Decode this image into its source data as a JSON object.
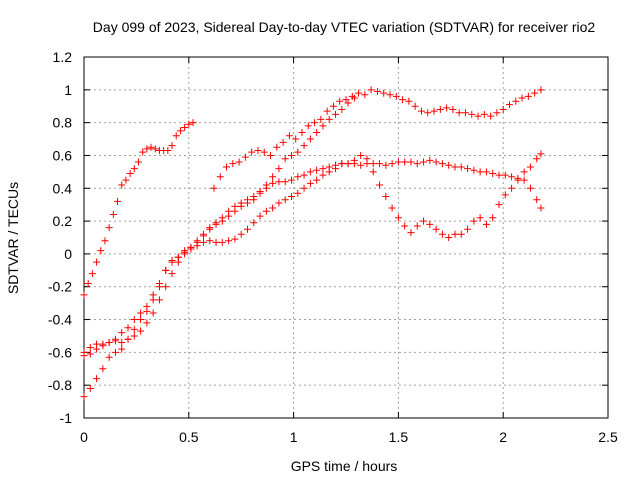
{
  "chart_data": {
    "type": "scatter",
    "title": "Day 099 of 2023, Sidereal Day-to-day VTEC variation (SDTVAR) for receiver rio2",
    "xlabel": "GPS time / hours",
    "ylabel": "SDTVAR / TECUs",
    "xlim": [
      0,
      2.5
    ],
    "ylim": [
      -1,
      1.2
    ],
    "x_ticks": [
      0,
      0.5,
      1,
      1.5,
      2,
      2.5
    ],
    "x_tick_labels": [
      "0",
      "0.5",
      "1",
      "1.5",
      "2",
      "2.5"
    ],
    "y_ticks": [
      -1,
      -0.8,
      -0.6,
      -0.4,
      -0.2,
      0,
      0.2,
      0.4,
      0.6,
      0.8,
      1,
      1.2
    ],
    "y_tick_labels": [
      "-1",
      "-0.8",
      "-0.6",
      "-0.4",
      "-0.2",
      "0",
      "0.2",
      "0.4",
      "0.6",
      "0.8",
      "1",
      "1.2"
    ],
    "grid": true,
    "marker": "+",
    "marker_color": "#ff0000",
    "series": [
      {
        "points": [
          [
            0.0,
            -0.25
          ],
          [
            0.02,
            -0.18
          ],
          [
            0.04,
            -0.12
          ],
          [
            0.06,
            -0.05
          ],
          [
            0.08,
            0.02
          ],
          [
            0.1,
            0.08
          ],
          [
            0.12,
            0.16
          ],
          [
            0.14,
            0.24
          ],
          [
            0.16,
            0.32
          ],
          [
            0.18,
            0.42
          ],
          [
            0.2,
            0.45
          ],
          [
            0.22,
            0.49
          ],
          [
            0.24,
            0.52
          ],
          [
            0.26,
            0.56
          ],
          [
            0.28,
            0.62
          ],
          [
            0.3,
            0.64
          ],
          [
            0.32,
            0.65
          ],
          [
            0.34,
            0.64
          ],
          [
            0.36,
            0.63
          ],
          [
            0.38,
            0.63
          ],
          [
            0.4,
            0.63
          ],
          [
            0.42,
            0.66
          ],
          [
            0.44,
            0.72
          ],
          [
            0.46,
            0.75
          ],
          [
            0.48,
            0.77
          ],
          [
            0.5,
            0.79
          ],
          [
            0.52,
            0.8
          ]
        ]
      },
      {
        "points": [
          [
            0.0,
            -0.62
          ],
          [
            0.03,
            -0.61
          ],
          [
            0.06,
            -0.58
          ],
          [
            0.09,
            -0.55
          ],
          [
            0.12,
            -0.54
          ],
          [
            0.15,
            -0.52
          ],
          [
            0.18,
            -0.48
          ],
          [
            0.21,
            -0.45
          ],
          [
            0.24,
            -0.4
          ],
          [
            0.27,
            -0.36
          ],
          [
            0.3,
            -0.32
          ],
          [
            0.33,
            -0.25
          ],
          [
            0.36,
            -0.18
          ],
          [
            0.39,
            -0.1
          ],
          [
            0.42,
            -0.04
          ],
          [
            0.45,
            -0.02
          ],
          [
            0.48,
            0.02
          ],
          [
            0.51,
            0.04
          ],
          [
            0.54,
            0.07
          ],
          [
            0.57,
            0.11
          ],
          [
            0.6,
            0.15
          ],
          [
            0.63,
            0.19
          ],
          [
            0.66,
            0.22
          ],
          [
            0.69,
            0.26
          ],
          [
            0.72,
            0.29
          ],
          [
            0.75,
            0.31
          ],
          [
            0.78,
            0.33
          ],
          [
            0.81,
            0.35
          ],
          [
            0.84,
            0.38
          ],
          [
            0.87,
            0.4
          ],
          [
            0.9,
            0.43
          ],
          [
            0.93,
            0.44
          ],
          [
            0.96,
            0.44
          ],
          [
            0.99,
            0.45
          ],
          [
            1.02,
            0.47
          ],
          [
            1.05,
            0.48
          ],
          [
            1.08,
            0.5
          ],
          [
            1.11,
            0.51
          ],
          [
            1.14,
            0.52
          ],
          [
            1.17,
            0.53
          ],
          [
            1.2,
            0.54
          ],
          [
            1.23,
            0.55
          ],
          [
            1.26,
            0.55
          ],
          [
            1.29,
            0.55
          ],
          [
            1.32,
            0.54
          ],
          [
            1.35,
            0.55
          ],
          [
            1.38,
            0.55
          ],
          [
            1.41,
            0.55
          ],
          [
            1.44,
            0.54
          ],
          [
            1.47,
            0.55
          ],
          [
            1.5,
            0.56
          ],
          [
            1.53,
            0.56
          ],
          [
            1.56,
            0.56
          ],
          [
            1.59,
            0.55
          ],
          [
            1.62,
            0.56
          ],
          [
            1.65,
            0.57
          ],
          [
            1.68,
            0.56
          ],
          [
            1.71,
            0.55
          ],
          [
            1.74,
            0.54
          ],
          [
            1.77,
            0.53
          ],
          [
            1.8,
            0.53
          ],
          [
            1.83,
            0.52
          ],
          [
            1.86,
            0.51
          ],
          [
            1.89,
            0.5
          ],
          [
            1.92,
            0.5
          ],
          [
            1.95,
            0.49
          ],
          [
            1.98,
            0.48
          ],
          [
            2.01,
            0.48
          ],
          [
            2.04,
            0.47
          ],
          [
            2.07,
            0.46
          ],
          [
            2.1,
            0.45
          ],
          [
            2.13,
            0.4
          ],
          [
            2.16,
            0.33
          ],
          [
            2.18,
            0.28
          ]
        ]
      },
      {
        "points": [
          [
            0.0,
            -0.87
          ],
          [
            0.03,
            -0.82
          ],
          [
            0.06,
            -0.76
          ],
          [
            0.09,
            -0.7
          ],
          [
            0.12,
            -0.63
          ],
          [
            0.15,
            -0.6
          ],
          [
            0.18,
            -0.58
          ],
          [
            0.21,
            -0.52
          ],
          [
            0.24,
            -0.46
          ],
          [
            0.27,
            -0.4
          ],
          [
            0.3,
            -0.35
          ],
          [
            0.33,
            -0.28
          ],
          [
            0.36,
            -0.2
          ],
          [
            0.39,
            -0.1
          ],
          [
            0.42,
            -0.05
          ],
          [
            0.45,
            -0.02
          ],
          [
            0.48,
            0.01
          ],
          [
            0.51,
            0.03
          ],
          [
            0.54,
            0.05
          ],
          [
            0.57,
            0.07
          ],
          [
            0.6,
            0.08
          ],
          [
            0.63,
            0.07
          ],
          [
            0.66,
            0.07
          ],
          [
            0.69,
            0.08
          ],
          [
            0.72,
            0.09
          ],
          [
            0.75,
            0.12
          ],
          [
            0.78,
            0.15
          ],
          [
            0.81,
            0.19
          ],
          [
            0.84,
            0.23
          ],
          [
            0.87,
            0.26
          ],
          [
            0.9,
            0.28
          ],
          [
            0.93,
            0.31
          ],
          [
            0.96,
            0.33
          ],
          [
            0.99,
            0.35
          ],
          [
            1.02,
            0.37
          ],
          [
            1.05,
            0.4
          ],
          [
            1.08,
            0.43
          ],
          [
            1.11,
            0.45
          ],
          [
            1.14,
            0.48
          ],
          [
            1.17,
            0.5
          ],
          [
            1.2,
            0.52
          ],
          [
            1.23,
            0.55
          ],
          [
            1.26,
            0.55
          ],
          [
            1.29,
            0.57
          ],
          [
            1.32,
            0.6
          ],
          [
            1.35,
            0.58
          ],
          [
            1.38,
            0.5
          ],
          [
            1.41,
            0.42
          ],
          [
            1.44,
            0.35
          ],
          [
            1.47,
            0.28
          ],
          [
            1.5,
            0.22
          ],
          [
            1.53,
            0.17
          ],
          [
            1.56,
            0.13
          ],
          [
            1.59,
            0.17
          ],
          [
            1.62,
            0.2
          ],
          [
            1.65,
            0.18
          ],
          [
            1.68,
            0.15
          ],
          [
            1.71,
            0.12
          ],
          [
            1.74,
            0.1
          ],
          [
            1.77,
            0.12
          ],
          [
            1.8,
            0.12
          ],
          [
            1.83,
            0.15
          ],
          [
            1.86,
            0.2
          ],
          [
            1.89,
            0.22
          ],
          [
            1.92,
            0.18
          ],
          [
            1.95,
            0.22
          ],
          [
            1.98,
            0.3
          ],
          [
            2.01,
            0.36
          ],
          [
            2.04,
            0.4
          ],
          [
            2.07,
            0.45
          ],
          [
            2.1,
            0.5
          ],
          [
            2.13,
            0.53
          ],
          [
            2.16,
            0.58
          ],
          [
            2.18,
            0.61
          ]
        ]
      },
      {
        "points": [
          [
            0.62,
            0.4
          ],
          [
            0.65,
            0.47
          ],
          [
            0.68,
            0.53
          ],
          [
            0.71,
            0.55
          ],
          [
            0.74,
            0.56
          ],
          [
            0.77,
            0.59
          ],
          [
            0.8,
            0.62
          ],
          [
            0.83,
            0.63
          ],
          [
            0.86,
            0.62
          ],
          [
            0.89,
            0.6
          ],
          [
            0.92,
            0.65
          ],
          [
            0.95,
            0.68
          ],
          [
            0.98,
            0.72
          ],
          [
            1.01,
            0.7
          ],
          [
            1.04,
            0.74
          ],
          [
            1.07,
            0.78
          ],
          [
            1.1,
            0.8
          ],
          [
            1.13,
            0.82
          ],
          [
            1.16,
            0.87
          ],
          [
            1.19,
            0.9
          ],
          [
            1.22,
            0.93
          ],
          [
            1.25,
            0.94
          ],
          [
            1.28,
            0.96
          ],
          [
            1.31,
            0.98
          ],
          [
            1.34,
            0.97
          ],
          [
            1.37,
            1.0
          ],
          [
            1.4,
            0.99
          ],
          [
            1.43,
            0.98
          ],
          [
            1.46,
            0.97
          ],
          [
            1.49,
            0.96
          ],
          [
            1.52,
            0.94
          ],
          [
            1.55,
            0.93
          ],
          [
            1.58,
            0.9
          ],
          [
            1.61,
            0.87
          ],
          [
            1.64,
            0.86
          ],
          [
            1.67,
            0.87
          ],
          [
            1.7,
            0.88
          ],
          [
            1.73,
            0.89
          ],
          [
            1.76,
            0.88
          ],
          [
            1.79,
            0.86
          ],
          [
            1.82,
            0.86
          ],
          [
            1.85,
            0.85
          ],
          [
            1.88,
            0.84
          ],
          [
            1.91,
            0.85
          ],
          [
            1.94,
            0.84
          ],
          [
            1.97,
            0.86
          ],
          [
            2.0,
            0.88
          ],
          [
            2.03,
            0.91
          ],
          [
            2.06,
            0.93
          ],
          [
            2.09,
            0.95
          ],
          [
            2.12,
            0.96
          ],
          [
            2.15,
            0.98
          ],
          [
            2.18,
            1.0
          ]
        ]
      },
      {
        "points": [
          [
            0.0,
            -0.6
          ],
          [
            0.03,
            -0.57
          ],
          [
            0.06,
            -0.55
          ],
          [
            0.09,
            -0.56
          ],
          [
            0.12,
            -0.54
          ],
          [
            0.15,
            -0.53
          ],
          [
            0.18,
            -0.54
          ],
          [
            0.21,
            -0.52
          ],
          [
            0.24,
            -0.5
          ],
          [
            0.27,
            -0.47
          ],
          [
            0.3,
            -0.42
          ],
          [
            0.33,
            -0.36
          ],
          [
            0.36,
            -0.28
          ],
          [
            0.39,
            -0.2
          ],
          [
            0.42,
            -0.12
          ],
          [
            0.45,
            -0.05
          ],
          [
            0.48,
            0.0
          ],
          [
            0.51,
            0.04
          ],
          [
            0.54,
            0.08
          ],
          [
            0.57,
            0.12
          ],
          [
            0.6,
            0.16
          ],
          [
            0.63,
            0.18
          ],
          [
            0.66,
            0.2
          ],
          [
            0.69,
            0.23
          ],
          [
            0.72,
            0.26
          ],
          [
            0.75,
            0.29
          ],
          [
            0.78,
            0.31
          ],
          [
            0.81,
            0.33
          ],
          [
            0.84,
            0.37
          ],
          [
            0.87,
            0.42
          ],
          [
            0.9,
            0.47
          ],
          [
            0.93,
            0.52
          ],
          [
            0.96,
            0.58
          ],
          [
            0.99,
            0.6
          ],
          [
            1.02,
            0.62
          ],
          [
            1.05,
            0.66
          ],
          [
            1.08,
            0.7
          ],
          [
            1.11,
            0.74
          ],
          [
            1.14,
            0.78
          ],
          [
            1.17,
            0.82
          ],
          [
            1.2,
            0.85
          ],
          [
            1.23,
            0.88
          ],
          [
            1.26,
            0.92
          ],
          [
            1.29,
            0.95
          ]
        ]
      }
    ]
  }
}
